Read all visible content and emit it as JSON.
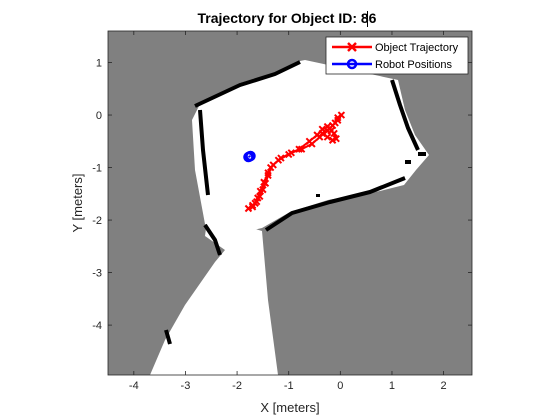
{
  "chart_data": {
    "type": "line",
    "title": "Trajectory for Object ID: 86",
    "xlabel": "X [meters]",
    "ylabel": "Y [meters]",
    "xlim": [
      -4.5,
      2.55
    ],
    "ylim": [
      -4.95,
      1.6
    ],
    "x_ticks": [
      -4,
      -3,
      -2,
      -1,
      0,
      1,
      2
    ],
    "y_ticks": [
      1,
      0,
      -1,
      -2,
      -3,
      -4
    ],
    "grid": false,
    "legend_position": "top-right",
    "background": "occupancy grid map (gray unknown, white free, black obstacles)",
    "series": [
      {
        "name": "Object Trajectory",
        "marker": "x",
        "color": "#ff0000",
        "x": [
          -1.78,
          -1.7,
          -1.62,
          -1.56,
          -1.5,
          -1.45,
          -1.4,
          -1.35,
          -1.2,
          -1.0,
          -0.8,
          -0.6,
          -0.45,
          -0.35,
          -0.25,
          -0.18,
          -0.12,
          -0.08,
          -0.15,
          -0.25,
          -0.35,
          -0.2,
          -0.1,
          -0.05,
          0.02,
          -0.05,
          -0.15,
          -0.25,
          -0.4,
          -0.55,
          -0.75,
          -0.95,
          -1.15,
          -1.3,
          -1.4,
          -1.48,
          -1.55,
          -1.6,
          -1.65,
          -1.7
        ],
        "y": [
          -1.78,
          -1.72,
          -1.65,
          -1.55,
          -1.42,
          -1.3,
          -1.15,
          -1.0,
          -0.86,
          -0.75,
          -0.65,
          -0.5,
          -0.38,
          -0.27,
          -0.22,
          -0.3,
          -0.35,
          -0.45,
          -0.48,
          -0.42,
          -0.35,
          -0.25,
          -0.15,
          -0.05,
          0.0,
          -0.1,
          -0.2,
          -0.3,
          -0.42,
          -0.55,
          -0.65,
          -0.72,
          -0.82,
          -0.95,
          -1.1,
          -1.28,
          -1.45,
          -1.58,
          -1.68,
          -1.75
        ]
      },
      {
        "name": "Robot Positions",
        "marker": "o",
        "color": "#0000ff",
        "x": [
          -1.78,
          -1.76,
          -1.74
        ],
        "y": [
          -0.8,
          -0.79,
          -0.78
        ]
      }
    ]
  },
  "colors": {
    "unknown": "#808080",
    "free": "#ffffff",
    "obstacle": "#000000",
    "trajectory": "#ff0000",
    "robot": "#0000ff"
  }
}
